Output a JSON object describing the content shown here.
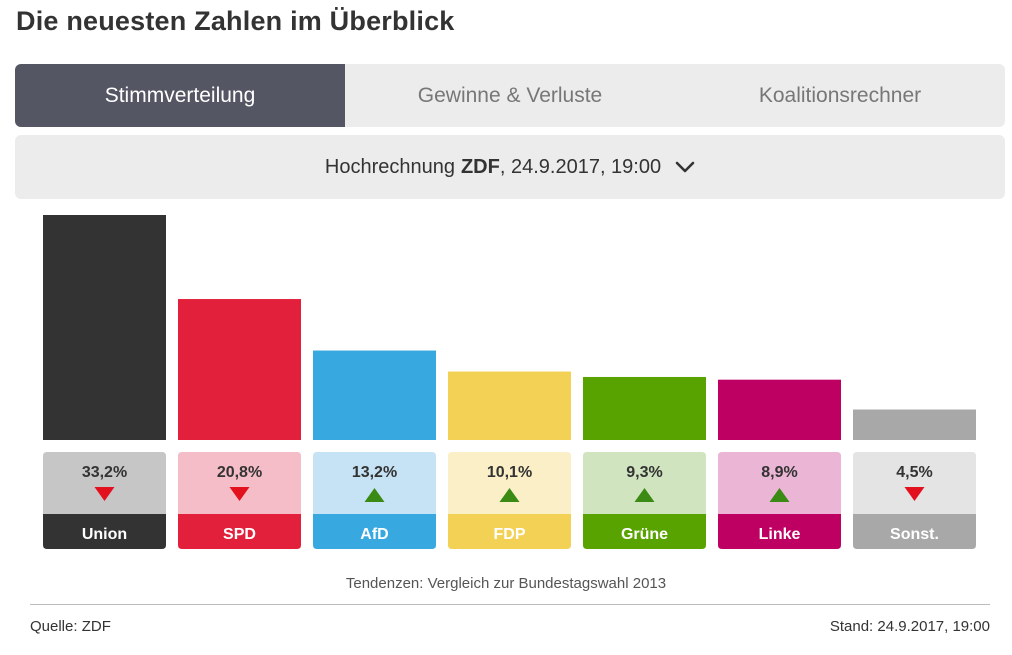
{
  "header": {
    "title": "Die neuesten Zahlen im Überblick"
  },
  "tabs": [
    {
      "label": "Stimmverteilung",
      "active": true
    },
    {
      "label": "Gewinne & Verluste",
      "active": false
    },
    {
      "label": "Koalitionsrechner",
      "active": false
    }
  ],
  "selector": {
    "prefix": "Hochrechnung",
    "source": "ZDF",
    "suffix": ", 24.9.2017, 19:00"
  },
  "note": "Tendenzen: Vergleich zur Bundestagswahl 2013",
  "footer": {
    "source": "Quelle: ZDF",
    "stand": "Stand: 24.9.2017, 19:00"
  },
  "chart_data": {
    "type": "bar",
    "title": "Stimmverteilung",
    "categories": [
      "Union",
      "SPD",
      "AfD",
      "FDP",
      "Grüne",
      "Linke",
      "Sonst."
    ],
    "values": [
      33.2,
      20.8,
      13.2,
      10.1,
      9.3,
      8.9,
      4.5
    ],
    "labels": [
      "33,2%",
      "20,8%",
      "13,2%",
      "10,1%",
      "9,3%",
      "8,9%",
      "4,5%"
    ],
    "trend": [
      "down",
      "down",
      "up",
      "up",
      "up",
      "up",
      "down"
    ],
    "colors": [
      "#333333",
      "#e3203c",
      "#37a8e0",
      "#f2d154",
      "#58a300",
      "#bf0063",
      "#a8a8a8"
    ],
    "light_colors": [
      "#c6c6c6",
      "#f5bdc7",
      "#c6e3f5",
      "#fbefc7",
      "#d0e5bf",
      "#ebb5d6",
      "#e4e4e4"
    ],
    "trend_colors": {
      "up": "#3a8a14",
      "down": "#e3101e"
    },
    "ylim": [
      0,
      33.2
    ]
  }
}
